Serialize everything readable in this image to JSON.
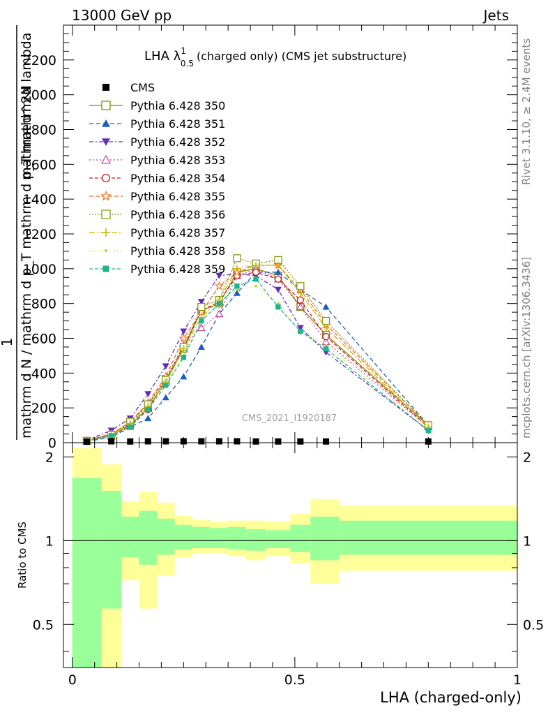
{
  "header": {
    "left": "13000 GeV pp",
    "right": "Jets",
    "title_main": "LHA λ",
    "title_sup": "1",
    "title_sub": "0.5",
    "title_rest": "(charged only) (CMS jet substructure)"
  },
  "side": {
    "rivet": "Rivet 3.1.10, ≥ 2.4M events",
    "mcplots": "mcplots.cern.ch [arXiv:1306.3436]"
  },
  "watermark": "CMS_2021_I1920187",
  "ylabel_top": {
    "one": "1",
    "den": "mathrm d N / mathrm d p_T mathrm d p_T mathrm d lambda",
    "num": "mathrm d^2N"
  },
  "ylabel_ratio": "Ratio to CMS",
  "xlabel": "LHA (charged-only)",
  "chart_data": {
    "type": "line",
    "x": [
      0.0325,
      0.0875,
      0.13,
      0.17,
      0.21,
      0.25,
      0.29,
      0.33,
      0.37,
      0.4125,
      0.4625,
      0.5125,
      0.57,
      0.8
    ],
    "xlim": [
      -0.02,
      1.0
    ],
    "ylim": [
      0,
      2400
    ],
    "yticks": [
      0,
      200,
      400,
      600,
      800,
      1000,
      1200,
      1400,
      1600,
      1800,
      2000,
      2200
    ],
    "xticks": [
      0,
      0.5,
      1
    ],
    "xtick_labels": [
      "0",
      "0.5",
      "1"
    ],
    "data_series": {
      "name": "CMS",
      "values": [
        2,
        4,
        3,
        4,
        4,
        4,
        4,
        4,
        4,
        3,
        3,
        3,
        3,
        3
      ]
    },
    "series": [
      {
        "name": "Pythia 6.428 350",
        "color": "#8a8a00",
        "dash": "",
        "marker": "square-open",
        "values": [
          10,
          40,
          100,
          200,
          350,
          540,
          760,
          800,
          980,
          1000,
          960,
          780,
          620,
          100
        ]
      },
      {
        "name": "Pythia 6.428 351",
        "color": "#1a5fbf",
        "dash": "6,4",
        "marker": "triangle-up",
        "values": [
          8,
          30,
          90,
          140,
          260,
          380,
          550,
          740,
          860,
          980,
          980,
          880,
          780,
          100
        ]
      },
      {
        "name": "Pythia 6.428 352",
        "color": "#5f2dbd",
        "dash": "6,3,2,3",
        "marker": "triangle-down",
        "values": [
          15,
          70,
          140,
          280,
          440,
          640,
          810,
          960,
          970,
          960,
          880,
          660,
          520,
          70
        ]
      },
      {
        "name": "Pythia 6.428 353",
        "color": "#c33fa0",
        "dash": "2,3",
        "marker": "triangle-open",
        "values": [
          12,
          50,
          110,
          220,
          370,
          560,
          660,
          740,
          960,
          1000,
          940,
          780,
          580,
          90
        ]
      },
      {
        "name": "Pythia 6.428 354",
        "color": "#d01525",
        "dash": "5,3",
        "marker": "circle-open",
        "values": [
          12,
          50,
          100,
          190,
          360,
          550,
          760,
          810,
          960,
          980,
          940,
          820,
          610,
          90
        ]
      },
      {
        "name": "Pythia 6.428 355",
        "color": "#f07020",
        "dash": "6,3",
        "marker": "star-open",
        "values": [
          12,
          50,
          120,
          230,
          380,
          600,
          750,
          900,
          980,
          1020,
          1020,
          880,
          680,
          100
        ]
      },
      {
        "name": "Pythia 6.428 356",
        "color": "#8a9a1a",
        "dash": "2,2",
        "marker": "square-open",
        "values": [
          10,
          45,
          120,
          220,
          360,
          550,
          780,
          820,
          1060,
          1030,
          1050,
          900,
          700,
          100
        ]
      },
      {
        "name": "Pythia 6.428 357",
        "color": "#c8b400",
        "dash": "8,3,2,3",
        "marker": "ystar",
        "values": [
          10,
          40,
          110,
          210,
          350,
          540,
          720,
          820,
          1000,
          1020,
          1020,
          860,
          660,
          90
        ]
      },
      {
        "name": "Pythia 6.428 358",
        "color": "#b9d62a",
        "dash": "1,3",
        "marker": "dot",
        "values": [
          10,
          40,
          100,
          200,
          350,
          500,
          700,
          800,
          880,
          900,
          800,
          640,
          560,
          80
        ]
      },
      {
        "name": "Pythia 6.428 359",
        "color": "#20b48c",
        "dash": "5,3",
        "marker": "square-filled",
        "values": [
          10,
          40,
          90,
          190,
          330,
          490,
          700,
          800,
          900,
          940,
          780,
          640,
          540,
          70
        ]
      }
    ],
    "ratio": {
      "ylim_top": 2.25,
      "ylim_bottom": 0.35,
      "yticks": [
        0.5,
        1,
        2
      ],
      "ytick_labels": [
        "0.5",
        "1",
        "2"
      ],
      "bin_edges": [
        0.0,
        0.065,
        0.11,
        0.15,
        0.19,
        0.23,
        0.27,
        0.31,
        0.35,
        0.39,
        0.435,
        0.49,
        0.535,
        0.6,
        1.0
      ],
      "yellow_high": [
        2.15,
        1.88,
        1.38,
        1.5,
        1.37,
        1.23,
        1.19,
        1.17,
        1.18,
        1.18,
        1.17,
        1.25,
        1.41,
        1.34
      ],
      "yellow_low": [
        0.3,
        0.3,
        0.72,
        0.57,
        0.75,
        0.87,
        0.9,
        0.9,
        0.88,
        0.85,
        0.88,
        0.83,
        0.7,
        0.78
      ],
      "green_high": [
        1.68,
        1.51,
        1.22,
        1.28,
        1.2,
        1.14,
        1.12,
        1.11,
        1.12,
        1.1,
        1.09,
        1.14,
        1.22,
        1.18
      ],
      "green_low": [
        0.3,
        0.57,
        0.87,
        0.82,
        0.89,
        0.93,
        0.94,
        0.94,
        0.93,
        0.92,
        0.94,
        0.91,
        0.85,
        0.89
      ]
    }
  },
  "colors": {
    "band_yellow": "#ffff99",
    "band_green": "#99ff99"
  }
}
